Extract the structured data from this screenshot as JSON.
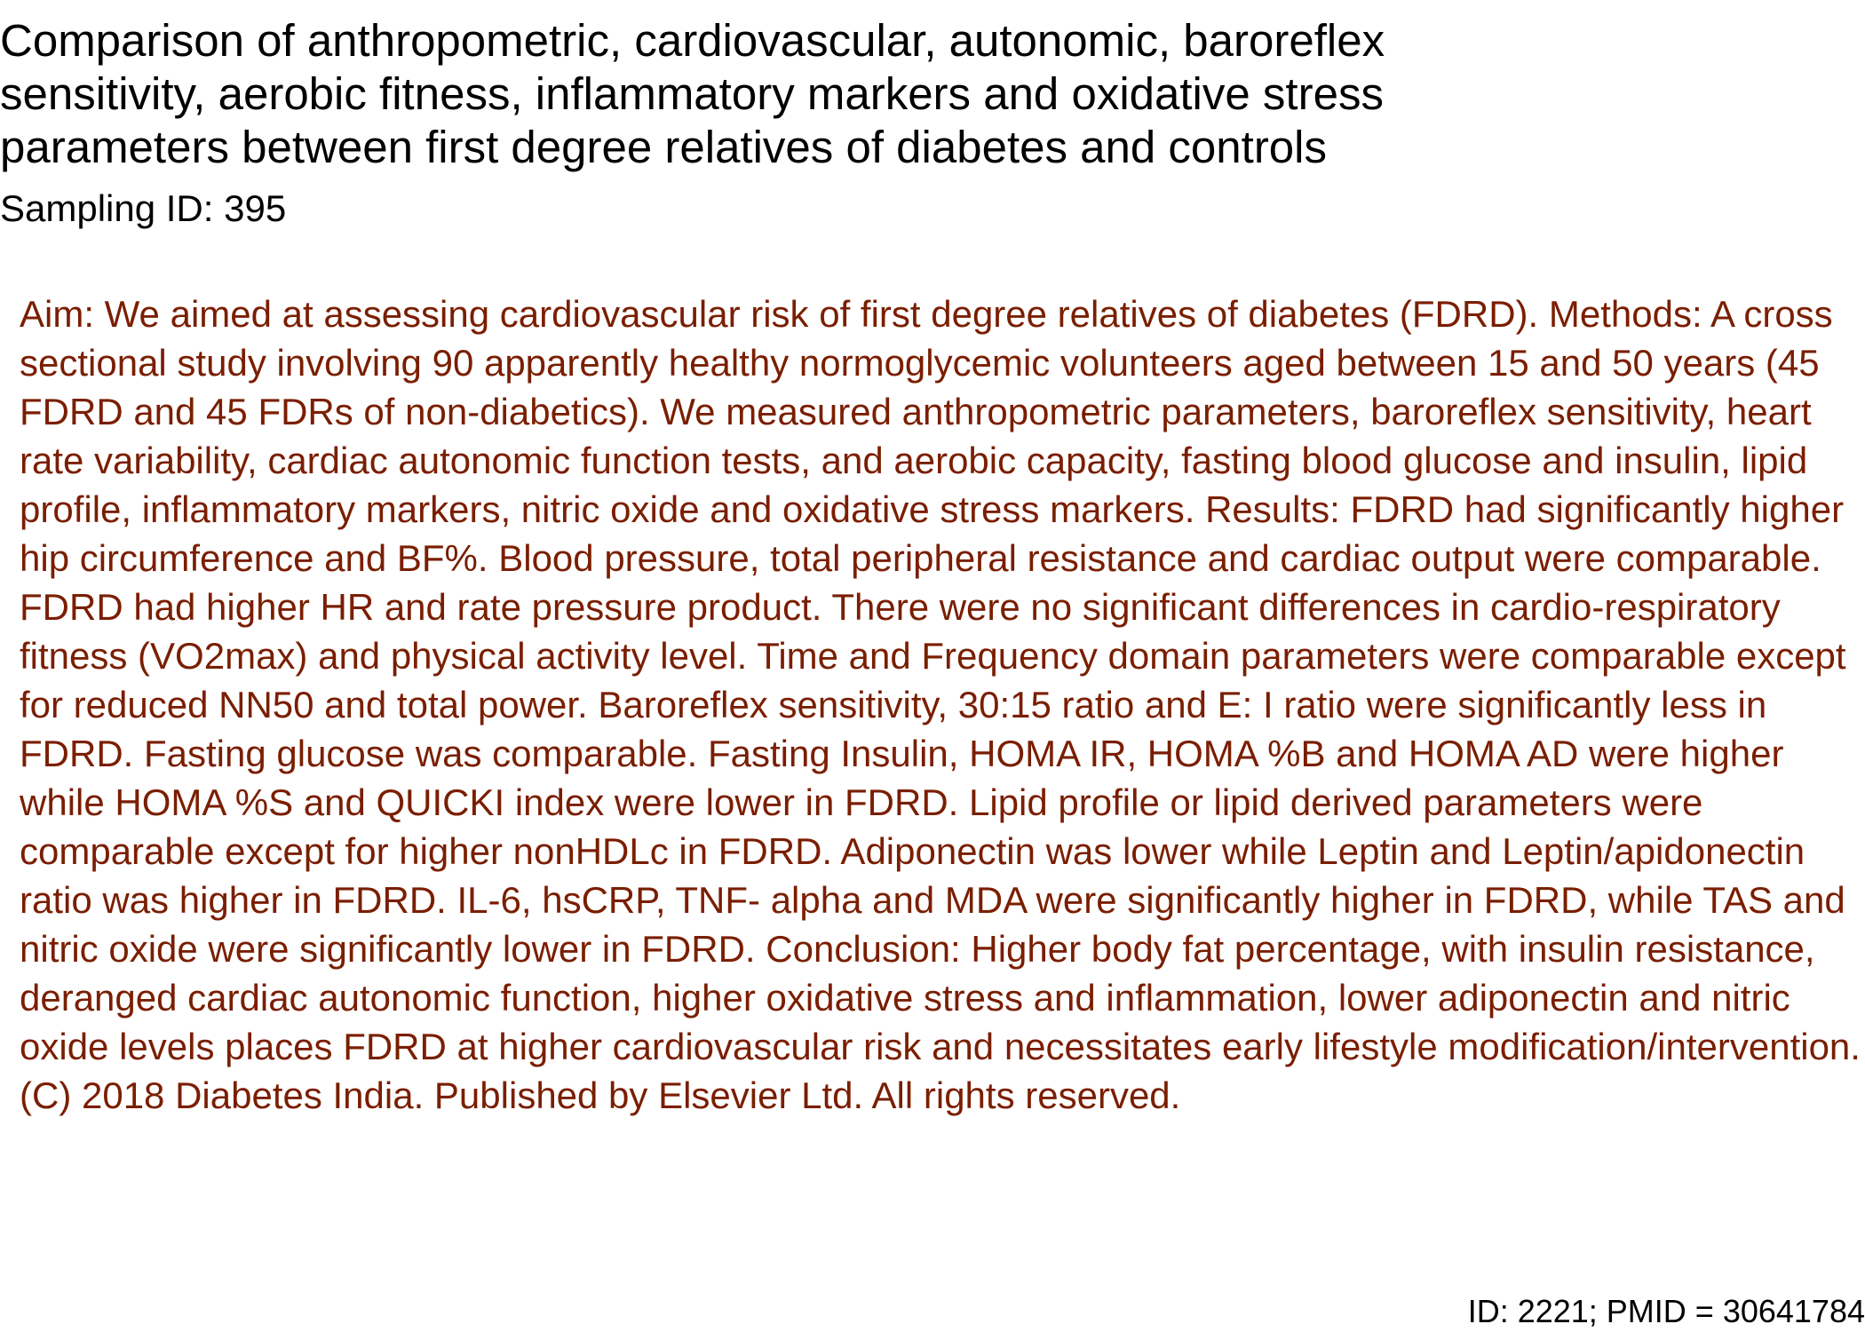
{
  "title": "Comparison of anthropometric, cardiovascular, autonomic, baroreflex sensitivity, aerobic fitness, inflammatory markers and oxidative stress parameters between first degree relatives of diabetes and controls",
  "sampling_id": "Sampling ID: 395",
  "abstract": "Aim: We aimed at assessing cardiovascular risk of first degree relatives of diabetes (FDRD). Methods: A cross sectional study involving 90 apparently healthy normoglycemic volunteers aged between 15 and 50 years (45 FDRD and 45 FDRs of non-diabetics). We measured anthropometric parameters, baroreflex sensitivity, heart rate variability, cardiac autonomic function tests, and aerobic capacity, fasting blood glucose and insulin, lipid profile, inflammatory markers, nitric oxide and oxidative stress markers. Results: FDRD had significantly higher hip circumference and BF%. Blood pressure, total peripheral resistance and cardiac output were comparable. FDRD had higher HR and rate pressure product. There were no significant differences in cardio-respiratory fitness (VO2max) and physical activity level. Time and Frequency domain parameters were comparable except for reduced NN50 and total power. Baroreflex sensitivity, 30:15 ratio and E: I ratio were significantly less in FDRD. Fasting glucose was comparable. Fasting Insulin, HOMA IR, HOMA %B and HOMA AD were higher while HOMA %S and QUICKI index were lower in FDRD. Lipid profile or lipid derived parameters were comparable except for higher nonHDLc in FDRD. Adiponectin was lower while Leptin and Leptin/apidonectin ratio was higher in FDRD. IL-6, hsCRP, TNF- alpha and MDA were significantly higher in FDRD, while TAS and nitric oxide were significantly lower in FDRD. Conclusion: Higher body fat percentage, with insulin resistance, deranged cardiac autonomic function, higher oxidative stress and inflammation, lower adiponectin and nitric oxide levels places FDRD at higher cardiovascular risk and necessitates early lifestyle modification/intervention. (C) 2018 Diabetes India. Published by Elsevier Ltd. All rights reserved.",
  "footer": "ID: 2221; PMID = 30641784",
  "colors": {
    "title_text": "#000000",
    "abstract_text": "#7a1e00",
    "background": "#ffffff"
  }
}
